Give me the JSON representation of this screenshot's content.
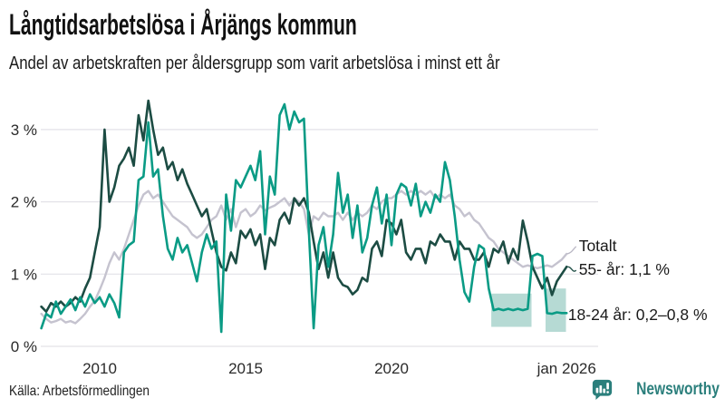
{
  "header": {
    "title": "Långtidsarbetslösa i Årjängs kommun",
    "subtitle": "Andel av arbetskraften per åldersgrupp som varit arbetslösa i minst ett år"
  },
  "footer": {
    "source": "Källa: Arbetsförmedlingen",
    "brand": "Newsworthy"
  },
  "colors": {
    "totalt": "#c5c3cf",
    "age55": "#1c4c43",
    "age1824": "#0a9b85",
    "band": "#a9d4cc",
    "grid": "#e3e2e8",
    "axis_text": "#2a2a2a",
    "text": "#1a1a1a",
    "leader_totalt": "#b9b7c4",
    "leader_age55": "#1c4c43",
    "brand": "#2b7f7c"
  },
  "chart_data": {
    "type": "line",
    "title": "Långtidsarbetslösa i Årjängs kommun",
    "subtitle": "Andel av arbetskraften per åldersgrupp som varit arbetslösa i minst ett år",
    "unit": "%",
    "x_unit": "year (monthly data)",
    "x_start": 2008.0,
    "x_step": 0.166667,
    "xlim": [
      2007.9,
      2026.6
    ],
    "ylim": [
      0,
      3.45
    ],
    "grid": true,
    "yticks": [
      {
        "value": 0,
        "label": "0 %"
      },
      {
        "value": 1,
        "label": "1 %"
      },
      {
        "value": 2,
        "label": "2 %"
      },
      {
        "value": 3,
        "label": "3 %"
      }
    ],
    "xticks": [
      {
        "value": 2010,
        "label": "2010"
      },
      {
        "value": 2015,
        "label": "2015"
      },
      {
        "value": 2020,
        "label": "2020"
      },
      {
        "value": 2026,
        "label": "jan 2026"
      }
    ],
    "series": [
      {
        "name": "Totalt",
        "color": "#c5c3cf",
        "width": 2.4,
        "values": [
          0.45,
          0.38,
          0.33,
          0.35,
          0.38,
          0.33,
          0.35,
          0.32,
          0.38,
          0.45,
          0.55,
          0.63,
          0.78,
          0.95,
          1.15,
          1.3,
          1.2,
          1.35,
          1.55,
          1.75,
          1.95,
          2.1,
          2.15,
          2.05,
          2.1,
          2.0,
          1.9,
          1.8,
          1.75,
          1.7,
          1.65,
          1.55,
          1.5,
          1.55,
          1.65,
          1.75,
          1.8,
          1.95,
          1.75,
          1.9,
          1.65,
          1.85,
          1.9,
          1.8,
          1.85,
          1.95,
          1.88,
          1.92,
          1.95,
          2.0,
          2.05,
          1.95,
          2.05,
          2.0,
          1.9,
          1.55,
          1.8,
          1.75,
          1.85,
          1.8,
          1.8,
          1.85,
          1.75,
          1.85,
          1.75,
          1.85,
          1.8,
          1.85,
          1.95,
          1.9,
          2.0,
          2.05,
          2.05,
          2.1,
          2.15,
          2.1,
          2.15,
          2.1,
          2.15,
          2.1,
          2.15,
          2.05,
          2.1,
          2.05,
          2.1,
          1.95,
          1.9,
          1.8,
          1.85,
          1.75,
          1.7,
          1.6,
          1.5,
          1.45,
          1.35,
          1.3,
          1.25,
          1.2,
          1.15,
          1.1,
          1.12,
          1.1,
          1.08,
          1.1,
          1.12,
          1.1,
          1.15,
          1.2,
          1.28
        ]
      },
      {
        "name": "55- år",
        "color": "#1c4c43",
        "width": 2.6,
        "values": [
          0.55,
          0.48,
          0.6,
          0.55,
          0.62,
          0.55,
          0.6,
          0.68,
          0.62,
          0.8,
          0.95,
          1.3,
          1.65,
          3.0,
          2.0,
          2.2,
          2.5,
          2.6,
          2.75,
          2.5,
          3.2,
          2.85,
          3.4,
          3.0,
          2.65,
          2.75,
          2.45,
          2.55,
          2.3,
          2.45,
          2.25,
          2.1,
          1.95,
          1.8,
          1.9,
          1.6,
          1.3,
          1.1,
          1.05,
          1.3,
          1.15,
          1.6,
          1.5,
          1.62,
          1.4,
          1.55,
          1.07,
          1.5,
          1.4,
          1.75,
          1.85,
          1.7,
          2.05,
          1.95,
          2.05,
          1.85,
          1.45,
          1.07,
          1.3,
          0.95,
          1.3,
          0.95,
          0.85,
          0.82,
          0.72,
          0.78,
          0.95,
          0.9,
          1.35,
          1.45,
          1.25,
          1.75,
          1.7,
          1.55,
          1.75,
          1.3,
          1.2,
          1.35,
          1.35,
          1.15,
          1.45,
          1.4,
          1.55,
          1.45,
          1.45,
          1.2,
          1.45,
          1.35,
          1.35,
          1.2,
          1.2,
          1.3,
          1.1,
          1.35,
          1.3,
          1.45,
          1.15,
          1.35,
          1.2,
          1.74,
          1.45,
          1.1,
          0.95,
          0.8,
          0.95,
          0.71,
          0.9,
          1.0,
          1.1
        ]
      },
      {
        "name": "18-24 år",
        "color": "#0a9b85",
        "width": 2.6,
        "values": [
          0.25,
          0.45,
          0.4,
          0.62,
          0.45,
          0.55,
          0.65,
          0.5,
          0.68,
          0.55,
          0.72,
          0.6,
          0.68,
          0.55,
          0.72,
          0.6,
          0.4,
          1.3,
          1.4,
          1.45,
          2.3,
          2.35,
          3.1,
          2.35,
          2.45,
          1.8,
          1.35,
          1.2,
          1.5,
          1.3,
          1.4,
          1.15,
          0.9,
          1.3,
          1.55,
          1.35,
          1.45,
          0.2,
          2.1,
          1.6,
          2.3,
          2.2,
          2.35,
          2.5,
          2.3,
          2.7,
          1.55,
          2.35,
          2.1,
          3.2,
          3.35,
          3.0,
          3.25,
          3.1,
          3.15,
          1.6,
          0.25,
          1.4,
          1.65,
          1.1,
          1.55,
          2.4,
          1.85,
          2.1,
          1.5,
          1.95,
          1.3,
          1.5,
          1.95,
          2.2,
          1.7,
          2.1,
          1.4,
          2.1,
          2.25,
          2.2,
          1.95,
          2.25,
          1.8,
          2.0,
          1.85,
          2.1,
          2.0,
          2.55,
          2.3,
          1.8,
          1.2,
          0.75,
          0.62,
          1.1,
          1.4,
          1.35,
          0.8,
          0.5,
          0.52,
          0.5,
          0.52,
          0.5,
          0.52,
          0.5,
          0.52,
          1.25,
          1.28,
          1.25,
          0.46,
          0.45,
          0.47,
          0.46,
          0.46
        ]
      }
    ],
    "bands": [
      {
        "series": "18-24 år",
        "x0": 2023.42,
        "x1": 2024.8,
        "low": 0.27,
        "high": 0.73
      },
      {
        "series": "18-24 år",
        "x0": 2025.28,
        "x1": 2025.98,
        "low": 0.2,
        "high": 0.8
      }
    ],
    "annotations": [
      {
        "label": "Totalt",
        "x": 2026.42,
        "y": 1.32,
        "anchor_x": 2026.02,
        "anchor_y": 1.28,
        "leader_color": "#b9b7c4"
      },
      {
        "label": "55- år: 1,1 %",
        "x": 2026.42,
        "y": 0.99,
        "anchor_x": 2026.02,
        "anchor_y": 1.1,
        "leader_color": "#1c4c43"
      },
      {
        "label": "18-24 år: 0,2–0,8 %",
        "x": 2026.05,
        "y": 0.365
      }
    ],
    "legend_position": "right-annotations"
  }
}
